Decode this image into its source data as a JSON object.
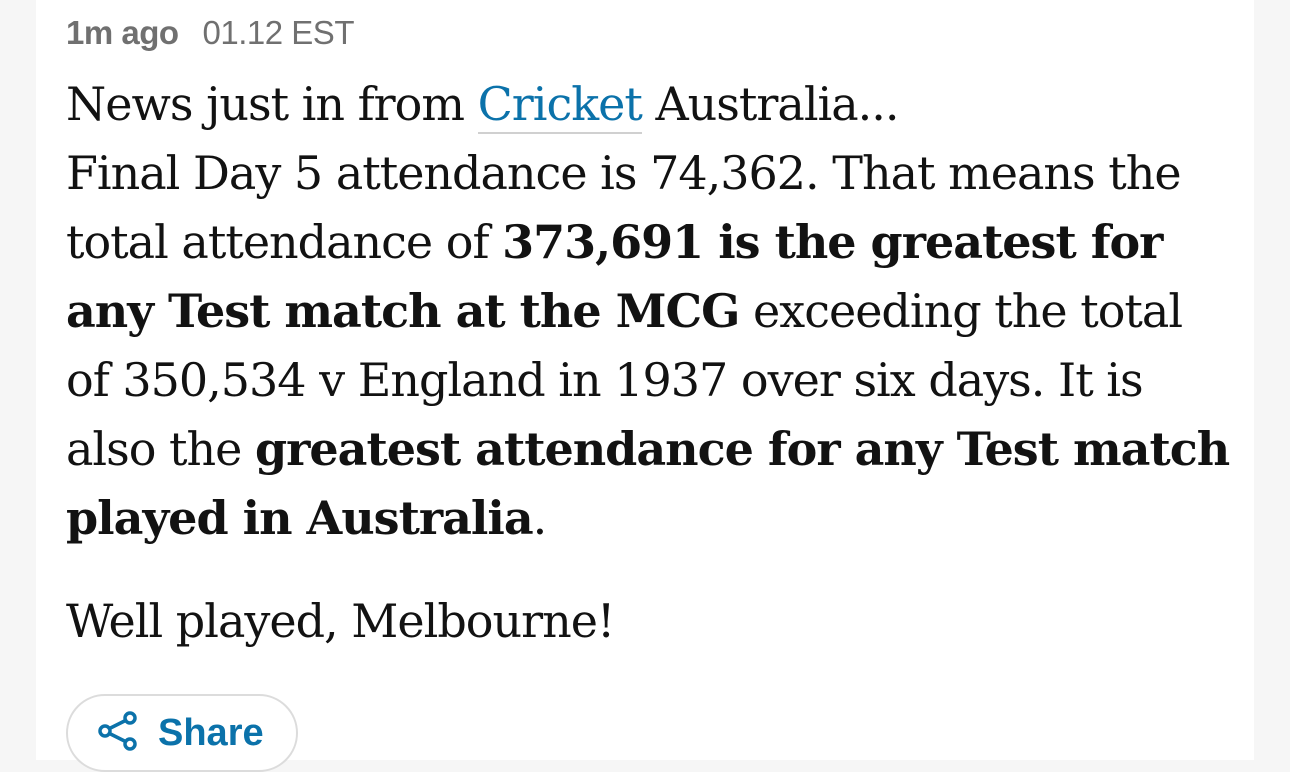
{
  "meta": {
    "relative_time": "1m ago",
    "time": "01.12 EST"
  },
  "post": {
    "p1": {
      "t1": "News just in from ",
      "link": "Cricket",
      "t2": " Australia...",
      "t3": "Final Day 5 attendance is 74,362. That means the total attendance of ",
      "b1": "373,691 is the greatest for any Test match at the MCG",
      "t4": " exceeding the total of 350,534 v England in 1937 over six days. It is also the ",
      "b2": "greatest attendance for any Test match played in Australia",
      "t5": "."
    },
    "p2": "Well played, Melbourne!"
  },
  "share": {
    "label": "Share",
    "icon": "share-icon"
  },
  "colors": {
    "accent": "#0b72aa",
    "text": "#121212",
    "meta": "#707070"
  }
}
